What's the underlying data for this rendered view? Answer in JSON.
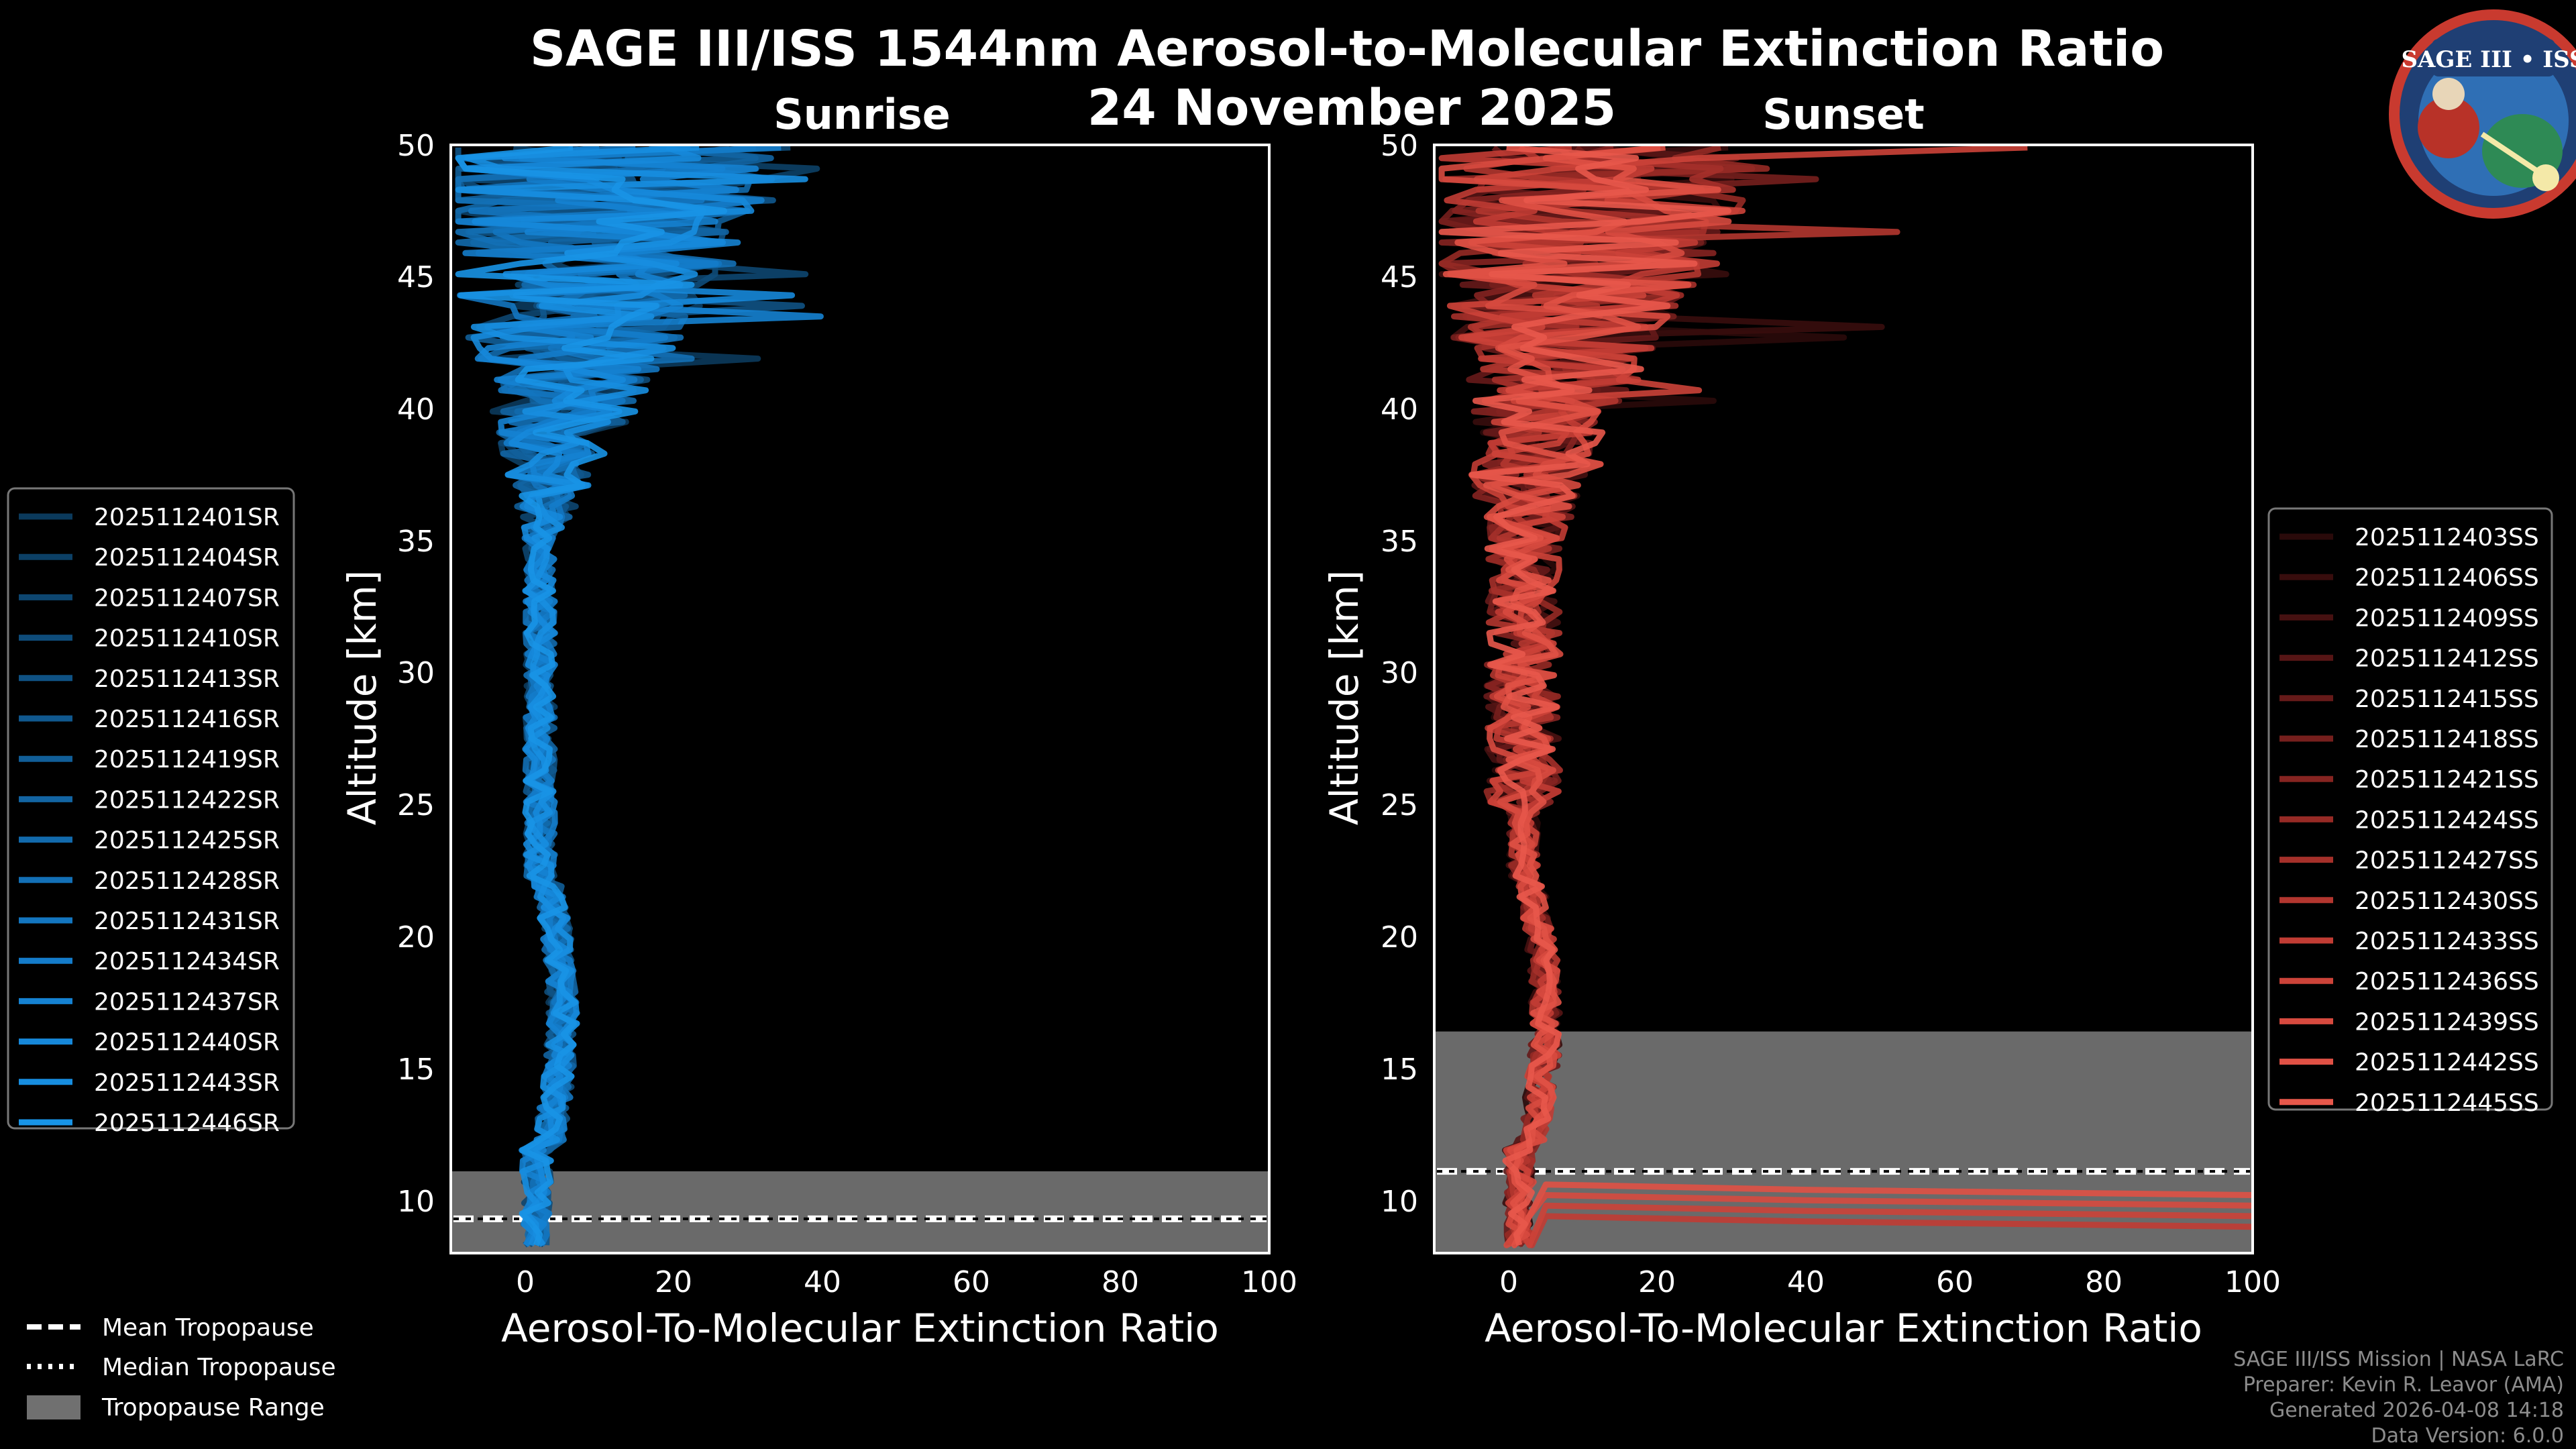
{
  "title": "SAGE III/ISS 1544nm Aerosol-to-Molecular Extinction Ratio",
  "date": "24 November 2025",
  "logo": {
    "text": "SAGE III • ISS"
  },
  "chart_data": [
    {
      "type": "line",
      "panel": "Sunrise",
      "xlabel": "Aerosol-To-Molecular Extinction Ratio",
      "ylabel": "Altitude [km]",
      "xlim": [
        -10,
        100
      ],
      "ylim": [
        8,
        50
      ],
      "xticks": [
        "0",
        "20",
        "40",
        "60",
        "80",
        "100"
      ],
      "yticks": [
        "10",
        "15",
        "20",
        "25",
        "30",
        "35",
        "40",
        "45",
        "50"
      ],
      "tropopause": {
        "mean": 9.3,
        "median": 9.3,
        "range": [
          8,
          11.1
        ]
      },
      "series": [
        {
          "name": "2025112401SR",
          "color": "#0b3a5c"
        },
        {
          "name": "2025112404SR",
          "color": "#0c4066"
        },
        {
          "name": "2025112407SR",
          "color": "#0d4670"
        },
        {
          "name": "2025112410SR",
          "color": "#0e4c7a"
        },
        {
          "name": "2025112413SR",
          "color": "#0f5284"
        },
        {
          "name": "2025112416SR",
          "color": "#10588e"
        },
        {
          "name": "2025112419SR",
          "color": "#115e98"
        },
        {
          "name": "2025112422SR",
          "color": "#1264a2"
        },
        {
          "name": "2025112425SR",
          "color": "#126aac"
        },
        {
          "name": "2025112428SR",
          "color": "#1370b6"
        },
        {
          "name": "2025112431SR",
          "color": "#1376c0"
        },
        {
          "name": "2025112434SR",
          "color": "#147cca"
        },
        {
          "name": "2025112437SR",
          "color": "#1582d2"
        },
        {
          "name": "2025112440SR",
          "color": "#1688da"
        },
        {
          "name": "2025112443SR",
          "color": "#178ee0"
        },
        {
          "name": "2025112446SR",
          "color": "#1894e6"
        }
      ]
    },
    {
      "type": "line",
      "panel": "Sunset",
      "xlabel": "Aerosol-To-Molecular Extinction Ratio",
      "ylabel": "Altitude [km]",
      "xlim": [
        -10,
        100
      ],
      "ylim": [
        8,
        50
      ],
      "xticks": [
        "0",
        "20",
        "40",
        "60",
        "80",
        "100"
      ],
      "yticks": [
        "10",
        "15",
        "20",
        "25",
        "30",
        "35",
        "40",
        "45",
        "50"
      ],
      "tropopause": {
        "mean": 11.1,
        "median": 11.1,
        "range": [
          8,
          16.4
        ]
      },
      "series": [
        {
          "name": "2025112403SS",
          "color": "#2a0a0a"
        },
        {
          "name": "2025112406SS",
          "color": "#380d0d"
        },
        {
          "name": "2025112409SS",
          "color": "#461111"
        },
        {
          "name": "2025112412SS",
          "color": "#561515"
        },
        {
          "name": "2025112415SS",
          "color": "#661a19"
        },
        {
          "name": "2025112418SS",
          "color": "#761f1d"
        },
        {
          "name": "2025112421SS",
          "color": "#862421"
        },
        {
          "name": "2025112424SS",
          "color": "#962a25"
        },
        {
          "name": "2025112427SS",
          "color": "#a5302a"
        },
        {
          "name": "2025112430SS",
          "color": "#b3362f"
        },
        {
          "name": "2025112433SS",
          "color": "#c13c34"
        },
        {
          "name": "2025112436SS",
          "color": "#cc4339"
        },
        {
          "name": "2025112439SS",
          "color": "#d74a3f"
        },
        {
          "name": "2025112442SS",
          "color": "#e05145"
        },
        {
          "name": "2025112445SS",
          "color": "#e8584b"
        }
      ]
    }
  ],
  "tropo_legend": [
    "Mean Tropopause",
    "Median Tropopause",
    "Tropopause Range"
  ],
  "credits": [
    "SAGE III/ISS Mission | NASA LaRC",
    "Preparer: Kevin R. Leavor (AMA)",
    "Generated 2026-04-08 14:18",
    "Data Version: 6.0.0"
  ]
}
